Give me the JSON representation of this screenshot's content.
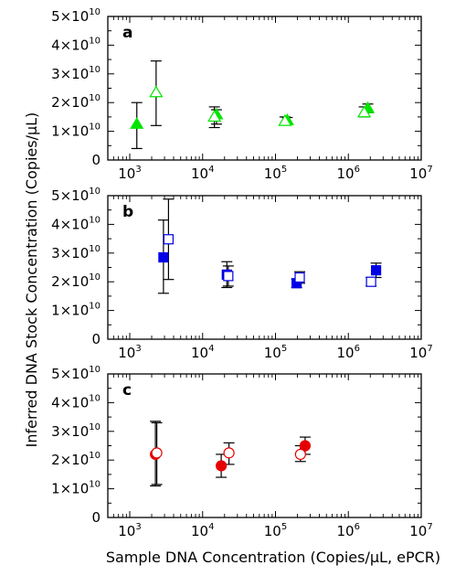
{
  "chart_data": {
    "type": "scatter",
    "xlabel": "Sample DNA Concentration (Copies/μL, ePCR)",
    "ylabel": "Inferred DNA Stock Concentration (Copies/μL)",
    "x_scale": "log",
    "xlim": [
      500,
      10000000
    ],
    "x_ticks": [
      {
        "value": 1000,
        "mantissa": "10",
        "exp": "3"
      },
      {
        "value": 10000,
        "mantissa": "10",
        "exp": "4"
      },
      {
        "value": 100000,
        "mantissa": "10",
        "exp": "5"
      },
      {
        "value": 1000000,
        "mantissa": "10",
        "exp": "6"
      },
      {
        "value": 10000000,
        "mantissa": "10",
        "exp": "7"
      }
    ],
    "ylim": [
      0,
      50000000000
    ],
    "y_ticks": [
      {
        "value": 0,
        "mantissa": "0",
        "exp": ""
      },
      {
        "value": 10000000000,
        "mantissa": "1×10",
        "exp": "10"
      },
      {
        "value": 20000000000,
        "mantissa": "2×10",
        "exp": "10"
      },
      {
        "value": 30000000000,
        "mantissa": "3×10",
        "exp": "10"
      },
      {
        "value": 40000000000,
        "mantissa": "4×10",
        "exp": "10"
      },
      {
        "value": 50000000000,
        "mantissa": "5×10",
        "exp": "10"
      }
    ],
    "panels": [
      {
        "label": "a",
        "color": "#00e600",
        "marker": "triangle",
        "series": [
          {
            "fill": "filled",
            "points": [
              {
                "x": 1250,
                "y": 12500000000,
                "lo": 4000000000,
                "hi": 20000000000
              },
              {
                "x": 15500,
                "y": 15800000000,
                "lo": 12500000000,
                "hi": 17500000000
              },
              {
                "x": 145000,
                "y": 13800000000,
                "lo": 12800000000,
                "hi": 14800000000
              },
              {
                "x": 1850000,
                "y": 18000000000,
                "lo": 16500000000,
                "hi": 19500000000
              }
            ]
          },
          {
            "fill": "open",
            "points": [
              {
                "x": 2300,
                "y": 23500000000,
                "lo": 12000000000,
                "hi": 34500000000
              },
              {
                "x": 14500,
                "y": 15000000000,
                "lo": 11300000000,
                "hi": 18500000000
              },
              {
                "x": 135000,
                "y": 13500000000,
                "lo": 12500000000,
                "hi": 15000000000
              },
              {
                "x": 1650000,
                "y": 16500000000,
                "lo": 15000000000,
                "hi": 18500000000
              }
            ]
          }
        ]
      },
      {
        "label": "b",
        "color": "#0000e6",
        "marker": "square",
        "series": [
          {
            "fill": "filled",
            "points": [
              {
                "x": 2900,
                "y": 28500000000,
                "lo": 16000000000,
                "hi": 41500000000
              },
              {
                "x": 21500,
                "y": 22500000000,
                "lo": 18000000000,
                "hi": 27000000000
              },
              {
                "x": 195000,
                "y": 19500000000,
                "lo": 18000000000,
                "hi": 21000000000
              },
              {
                "x": 2400000,
                "y": 24000000000,
                "lo": 21500000000,
                "hi": 26500000000
              }
            ]
          },
          {
            "fill": "open",
            "points": [
              {
                "x": 3400,
                "y": 34800000000,
                "lo": 20800000000,
                "hi": 48800000000
              },
              {
                "x": 22500,
                "y": 22000000000,
                "lo": 18500000000,
                "hi": 25500000000
              },
              {
                "x": 215000,
                "y": 21500000000,
                "lo": 19500000000,
                "hi": 23500000000
              },
              {
                "x": 2050000,
                "y": 20000000000,
                "lo": 18500000000,
                "hi": 21500000000
              }
            ]
          }
        ]
      },
      {
        "label": "c",
        "color": "#e60000",
        "marker": "circle",
        "series": [
          {
            "fill": "filled",
            "points": [
              {
                "x": 2250,
                "y": 22000000000,
                "lo": 11000000000,
                "hi": 33500000000
              },
              {
                "x": 18000,
                "y": 18000000000,
                "lo": 14000000000,
                "hi": 22000000000
              },
              {
                "x": 255000,
                "y": 25000000000,
                "lo": 22000000000,
                "hi": 28000000000
              }
            ]
          },
          {
            "fill": "open",
            "points": [
              {
                "x": 2350,
                "y": 22500000000,
                "lo": 11500000000,
                "hi": 33000000000
              },
              {
                "x": 23000,
                "y": 22500000000,
                "lo": 18500000000,
                "hi": 26000000000
              },
              {
                "x": 220000,
                "y": 22000000000,
                "lo": 19500000000,
                "hi": 25000000000
              }
            ]
          }
        ]
      }
    ]
  }
}
